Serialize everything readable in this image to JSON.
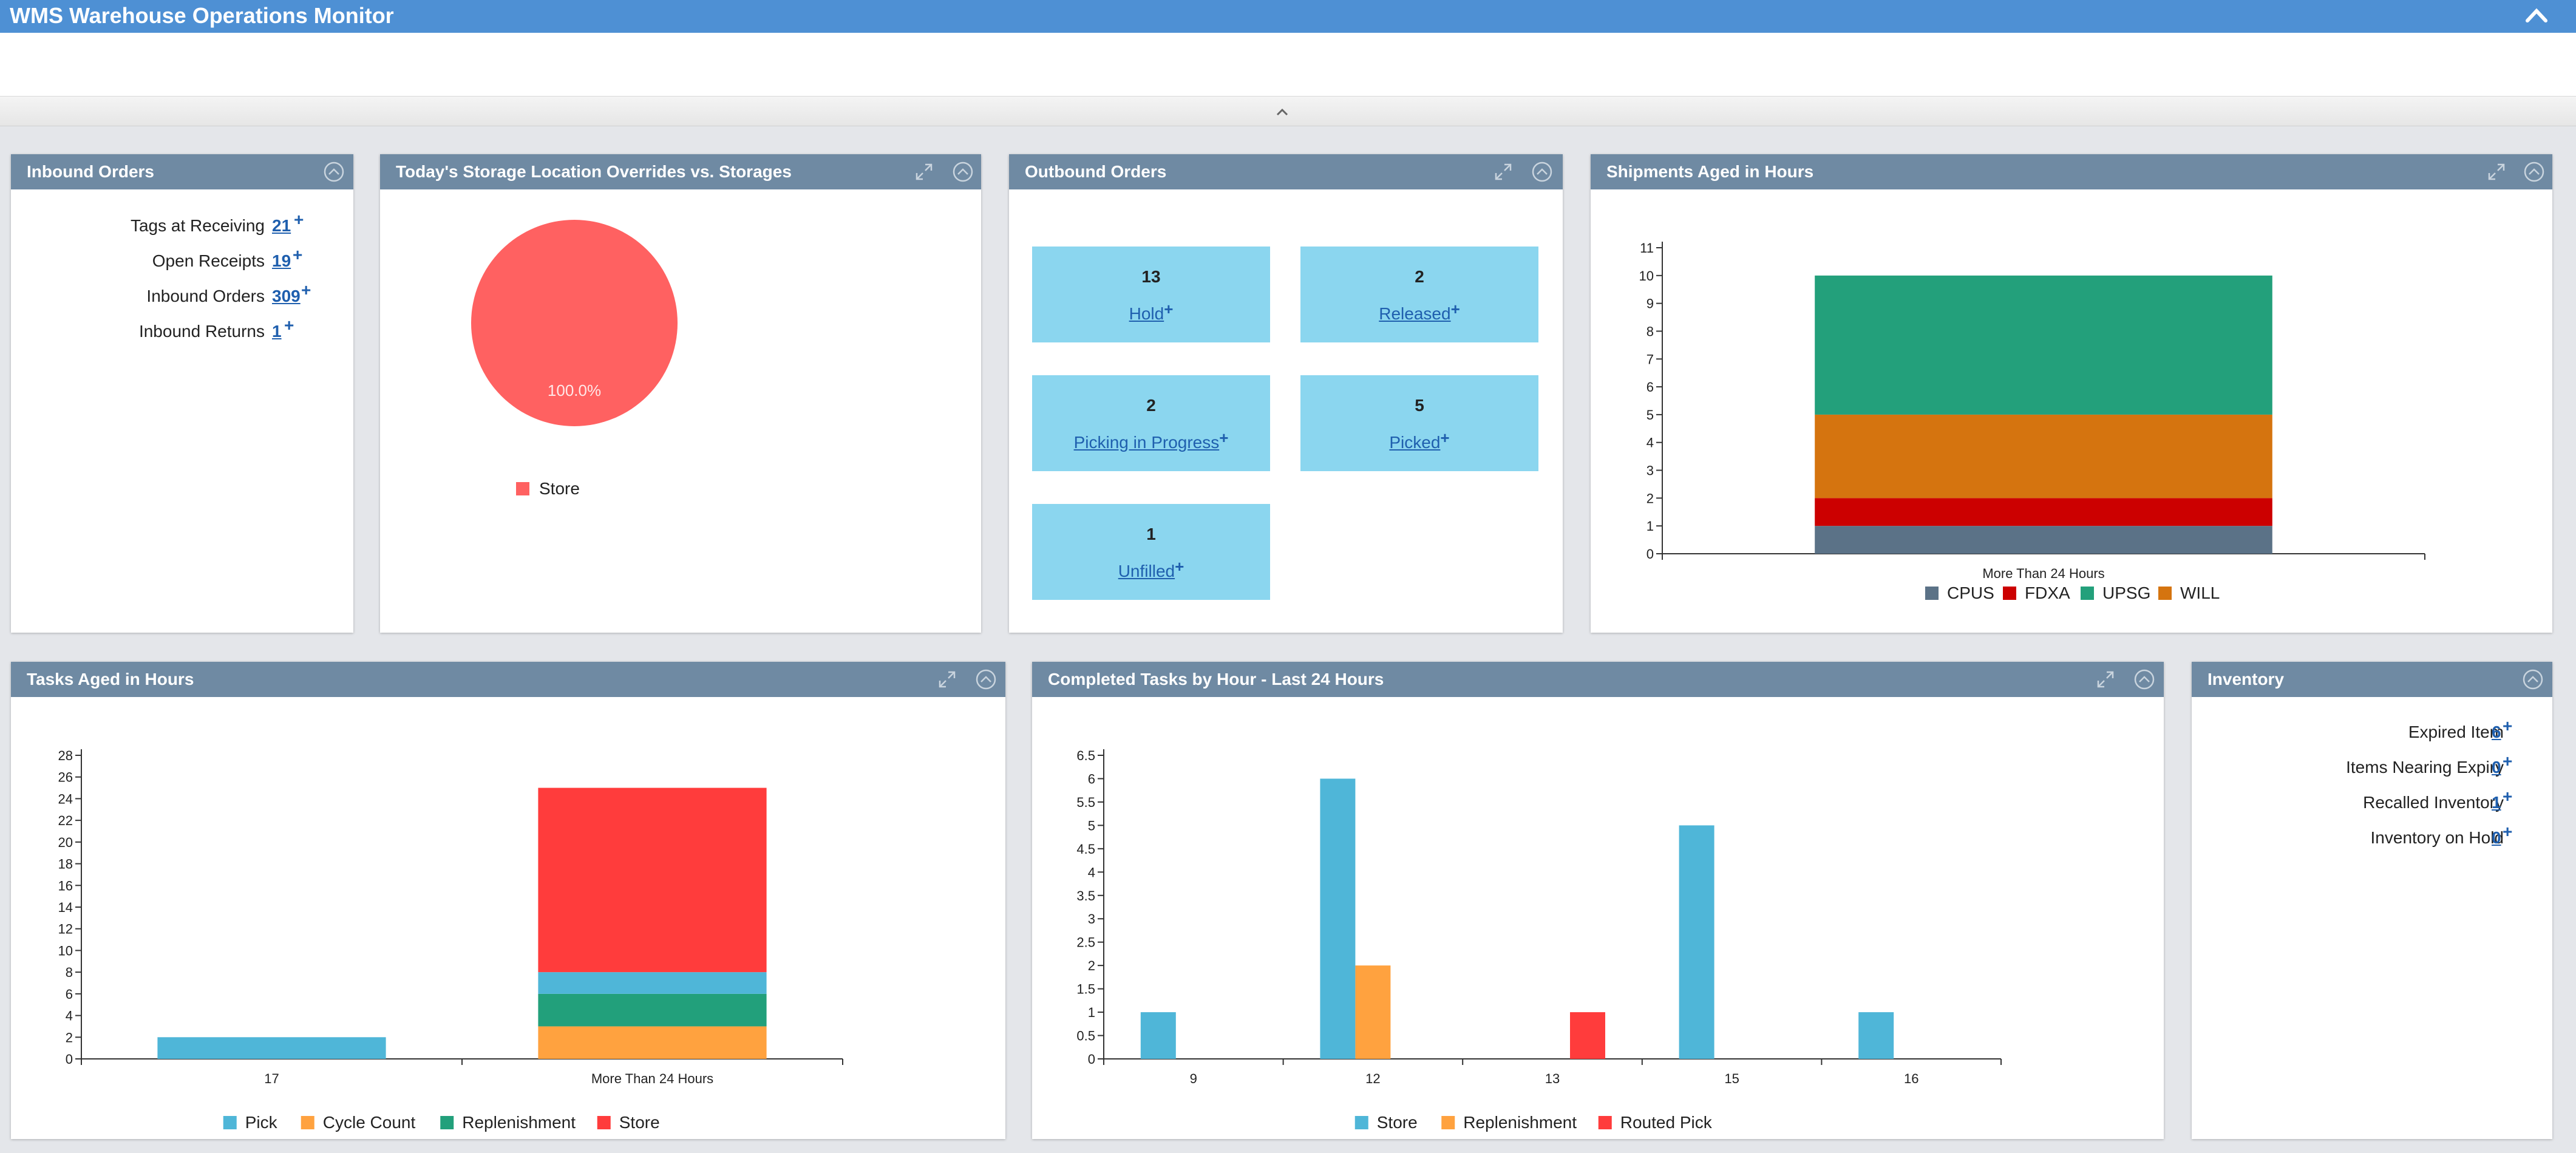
{
  "app": {
    "title": "WMS Warehouse Operations Monitor"
  },
  "panels": {
    "inbound": {
      "title": "Inbound Orders",
      "rows": [
        {
          "label": "Tags at Receiving",
          "value": "21"
        },
        {
          "label": "Open Receipts",
          "value": "19"
        },
        {
          "label": "Inbound Orders",
          "value": "309"
        },
        {
          "label": "Inbound Returns",
          "value": "1"
        }
      ]
    },
    "storage": {
      "title": "Today's Storage Location Overrides vs. Storages"
    },
    "outbound": {
      "title": "Outbound Orders",
      "tiles": [
        {
          "count": "13",
          "label": "Hold"
        },
        {
          "count": "2",
          "label": "Released"
        },
        {
          "count": "2",
          "label": "Picking in Progress"
        },
        {
          "count": "5",
          "label": "Picked"
        },
        {
          "count": "1",
          "label": "Unfilled"
        }
      ]
    },
    "shipments": {
      "title": "Shipments Aged in Hours"
    },
    "tasks": {
      "title": "Tasks Aged in Hours"
    },
    "completed": {
      "title": "Completed Tasks by Hour - Last 24 Hours"
    },
    "inventory": {
      "title": "Inventory",
      "rows": [
        {
          "label": "Expired Item",
          "value": "6"
        },
        {
          "label": "Items Nearing Expiry",
          "value": "0"
        },
        {
          "label": "Recalled Inventory",
          "value": "1"
        },
        {
          "label": "Inventory on Hold",
          "value": "0"
        }
      ]
    }
  },
  "colors": {
    "header": "#4e90d4",
    "panel_header": "#6f8aa3",
    "link": "#1f5fae",
    "tile": "#8bd6ef"
  },
  "chart_data": [
    {
      "id": "storage",
      "type": "pie",
      "slices": [
        {
          "name": "Store",
          "value": 100.0,
          "color": "#ff6161"
        }
      ],
      "labels": [
        "100.0%"
      ],
      "legend": "bottom"
    },
    {
      "id": "shipments",
      "type": "bar",
      "stacked": true,
      "categories": [
        "More Than 24 Hours"
      ],
      "series": [
        {
          "name": "CPUS",
          "values": [
            1
          ],
          "color": "#5b7287"
        },
        {
          "name": "FDXA",
          "values": [
            1
          ],
          "color": "#cc0000"
        },
        {
          "name": "UPSG",
          "values": [
            5
          ],
          "color": "#23a07b"
        },
        {
          "name": "WILL",
          "values": [
            3
          ],
          "color": "#d5740f"
        }
      ],
      "stack_order": [
        "CPUS",
        "FDXA",
        "WILL",
        "UPSG"
      ],
      "yticks": [
        0,
        1,
        2,
        3,
        4,
        5,
        6,
        7,
        8,
        9,
        10,
        11
      ],
      "ylim": [
        0,
        11
      ],
      "legend": "bottom"
    },
    {
      "id": "tasks",
      "type": "bar",
      "stacked": true,
      "categories": [
        "17",
        "More Than 24 Hours"
      ],
      "series": [
        {
          "name": "Pick",
          "values": [
            2,
            2
          ],
          "color": "#4fb6d8"
        },
        {
          "name": "Cycle Count",
          "values": [
            0,
            3
          ],
          "color": "#ffa23f"
        },
        {
          "name": "Replenishment",
          "values": [
            0,
            3
          ],
          "color": "#22a07b"
        },
        {
          "name": "Store",
          "values": [
            0,
            17
          ],
          "color": "#ff3c3c"
        }
      ],
      "stack_order": [
        "Cycle Count",
        "Replenishment",
        "Pick",
        "Store"
      ],
      "yticks": [
        0,
        2,
        4,
        6,
        8,
        10,
        12,
        14,
        16,
        18,
        20,
        22,
        24,
        26,
        28
      ],
      "ylim": [
        0,
        28
      ],
      "legend": "bottom"
    },
    {
      "id": "completed",
      "type": "bar",
      "stacked": false,
      "categories": [
        "9",
        "12",
        "13",
        "15",
        "16"
      ],
      "series": [
        {
          "name": "Store",
          "values": [
            1,
            6,
            0,
            5,
            1
          ],
          "color": "#4fb6d8"
        },
        {
          "name": "Replenishment",
          "values": [
            0,
            2,
            0,
            0,
            0
          ],
          "color": "#ffa23f"
        },
        {
          "name": "Routed Pick",
          "values": [
            0,
            0,
            1,
            0,
            0
          ],
          "color": "#ff3c3c"
        }
      ],
      "yticks": [
        "0",
        "0.5",
        "1",
        "1.5",
        "2",
        "2.5",
        "3",
        "3.5",
        "4",
        "4.5",
        "5",
        "5.5",
        "6",
        "6.5"
      ],
      "ylim": [
        0,
        6.5
      ],
      "legend": "bottom"
    }
  ]
}
